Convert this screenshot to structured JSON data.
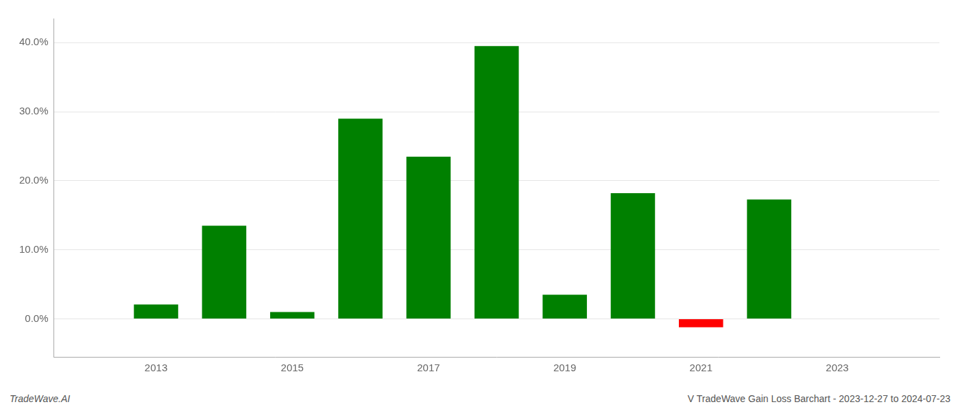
{
  "chart_data": {
    "type": "bar",
    "x": [
      2013,
      2014,
      2015,
      2016,
      2017,
      2018,
      2019,
      2020,
      2021,
      2022
    ],
    "values": [
      0.021,
      0.135,
      0.01,
      0.29,
      0.235,
      0.395,
      0.035,
      0.182,
      -0.012,
      0.173
    ],
    "colors": [
      "#008000",
      "#008000",
      "#008000",
      "#008000",
      "#008000",
      "#008000",
      "#008000",
      "#008000",
      "#ff0000",
      "#008000"
    ],
    "xlim": [
      2011.5,
      2024.5
    ],
    "xticks": [
      2013,
      2015,
      2017,
      2019,
      2021,
      2023
    ],
    "ylim": [
      -0.055,
      0.435
    ],
    "yticks": [
      {
        "value": 0.0,
        "label": "0.0%"
      },
      {
        "value": 0.1,
        "label": "10.0%"
      },
      {
        "value": 0.2,
        "label": "20.0%"
      },
      {
        "value": 0.3,
        "label": "30.0%"
      },
      {
        "value": 0.4,
        "label": "40.0%"
      }
    ],
    "grid": true,
    "annotations": [
      "TradeWave.AI",
      "V TradeWave Gain Loss Barchart - 2023-12-27 to 2024-07-23"
    ]
  }
}
